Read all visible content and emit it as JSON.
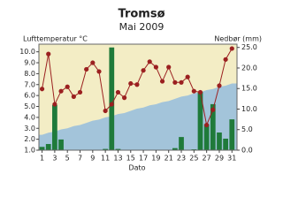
{
  "chart_data": {
    "type": "combo",
    "title": "Tromsø",
    "subtitle": "Mai 2009",
    "y_label": "Lufttemperatur °C",
    "y2_label": "Nedbør (mm)",
    "x_label": "Dato",
    "x": [
      1,
      2,
      3,
      4,
      5,
      6,
      7,
      8,
      9,
      10,
      11,
      12,
      13,
      14,
      15,
      16,
      17,
      18,
      19,
      20,
      21,
      22,
      23,
      24,
      25,
      26,
      27,
      28,
      29,
      30,
      31
    ],
    "xlim": [
      0.5,
      31.8
    ],
    "xticks": [
      1,
      3,
      5,
      7,
      9,
      11,
      13,
      15,
      17,
      19,
      21,
      23,
      25,
      27,
      29,
      31
    ],
    "ylim": [
      1,
      10.7
    ],
    "yticks": [
      {
        "value": 1,
        "label": "1.0"
      },
      {
        "value": 2,
        "label": "2.0"
      },
      {
        "value": 3,
        "label": "3.0"
      },
      {
        "value": 4,
        "label": "4.0"
      },
      {
        "value": 5,
        "label": "5.0"
      },
      {
        "value": 6,
        "label": "6.0"
      },
      {
        "value": 7,
        "label": "7.0"
      },
      {
        "value": 8,
        "label": "8.0"
      },
      {
        "value": 9,
        "label": "9.0"
      },
      {
        "value": 10,
        "label": "10.0"
      }
    ],
    "y2lim": [
      0,
      25.8
    ],
    "y2ticks": [
      {
        "value": 0,
        "label": "0.0"
      },
      {
        "value": 5,
        "label": "5.0"
      },
      {
        "value": 10,
        "label": "10.0"
      },
      {
        "value": 15,
        "label": "15.0"
      },
      {
        "value": 20,
        "label": "20.0"
      },
      {
        "value": 25,
        "label": "25.0"
      }
    ],
    "background": "#f3edc5",
    "series": [
      {
        "type": "area",
        "color": "#a3c4da",
        "values": [
          2.4,
          2.6,
          2.7,
          2.9,
          3.0,
          3.2,
          3.3,
          3.5,
          3.7,
          3.8,
          4.0,
          4.1,
          4.3,
          4.4,
          4.6,
          4.8,
          4.9,
          5.1,
          5.2,
          5.4,
          5.5,
          5.7,
          5.9,
          6.0,
          6.2,
          6.3,
          6.5,
          6.6,
          6.8,
          6.9,
          7.1
        ]
      },
      {
        "type": "bar",
        "axis": "y2",
        "color": "#1f7a3a",
        "values": [
          0.8,
          1.5,
          11.0,
          2.6,
          0,
          0,
          0,
          0,
          0,
          0,
          0.3,
          25.0,
          0.3,
          0,
          0,
          0,
          0,
          0,
          0,
          0,
          0,
          0.5,
          3.2,
          0,
          0.2,
          14.2,
          6.3,
          11.2,
          4.3,
          2.8,
          7.5
        ]
      },
      {
        "type": "line",
        "color": "#9b2020",
        "values": [
          6.6,
          9.8,
          5.2,
          6.4,
          6.8,
          5.9,
          6.3,
          8.4,
          9.0,
          8.2,
          4.6,
          5.2,
          6.3,
          5.8,
          7.1,
          7.0,
          8.3,
          9.1,
          8.6,
          7.3,
          8.6,
          7.2,
          7.2,
          7.7,
          6.4,
          6.3,
          3.3,
          4.7,
          6.9,
          9.3,
          10.3
        ]
      }
    ]
  }
}
